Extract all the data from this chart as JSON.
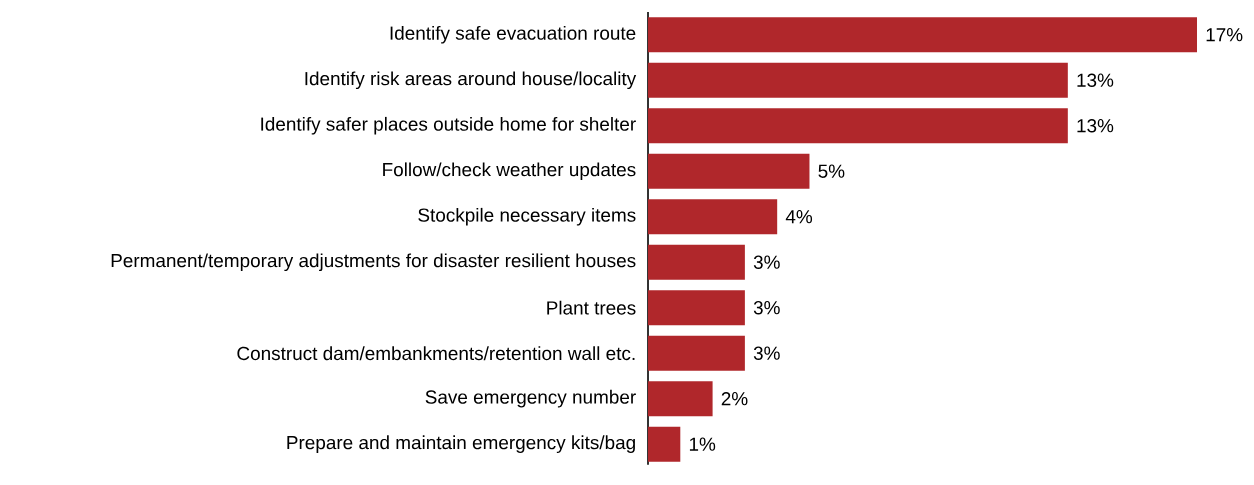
{
  "chart_data": {
    "type": "bar",
    "orientation": "horizontal",
    "color": "#b0272b",
    "data_labels": false,
    "categories": [
      "Identify safe evacuation route",
      "Identify risk areas around house/locality",
      "Identify safer places outside home for shelter",
      "Follow/check weather updates",
      "Stockpile necessary items",
      "Permanent/temporary adjustments for disaster resilient houses",
      "Plant trees",
      "Construct dam/embankments/retention wall etc.",
      "Save emergency number",
      "Prepare and maintain emergency kits/bag"
    ],
    "values": [
      17,
      13,
      13,
      5,
      4,
      3,
      3,
      3,
      2,
      1
    ],
    "value_labels": [
      "17%",
      "13%",
      "13%",
      "5%",
      "4%",
      "3%",
      "3%",
      "3%",
      "2%",
      "1%"
    ]
  }
}
